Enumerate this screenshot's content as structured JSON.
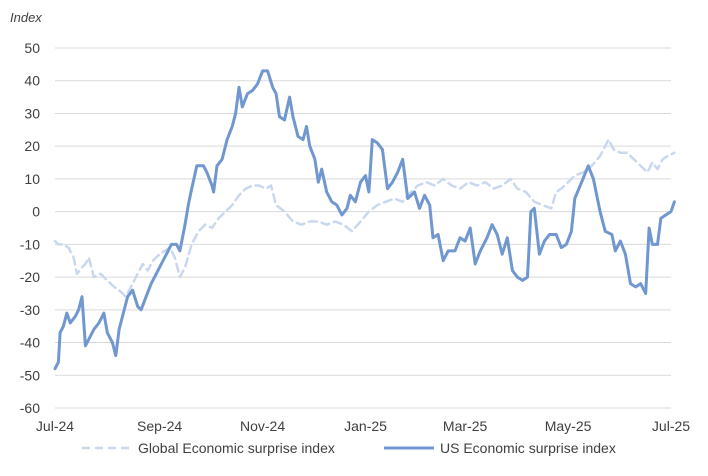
{
  "chart_data": {
    "type": "line",
    "ylabel": "Index",
    "xlabel": "",
    "ylim": [
      -60,
      50
    ],
    "yticks": [
      50,
      40,
      30,
      20,
      10,
      0,
      -10,
      -20,
      -30,
      -40,
      -50,
      -60
    ],
    "x_tick_labels": [
      "Jul-24",
      "Sep-24",
      "Nov-24",
      "Jan-25",
      "Mar-25",
      "May-25",
      "Jul-25"
    ],
    "x_tick_dates": [
      "2024-07-01",
      "2024-09-01",
      "2024-11-01",
      "2025-01-01",
      "2025-03-01",
      "2025-05-01",
      "2025-07-01"
    ],
    "grid": "horizontal",
    "legend": "bottom",
    "series": [
      {
        "name": "Global Economic surprise index",
        "color": "#c9d8ee",
        "style": "dashed",
        "points": [
          [
            "2024-07-01",
            -9
          ],
          [
            "2024-07-03",
            -10
          ],
          [
            "2024-07-06",
            -10
          ],
          [
            "2024-07-09",
            -11
          ],
          [
            "2024-07-12",
            -14
          ],
          [
            "2024-07-14",
            -19
          ],
          [
            "2024-07-17",
            -17
          ],
          [
            "2024-07-19",
            -16
          ],
          [
            "2024-07-21",
            -14
          ],
          [
            "2024-07-24",
            -20
          ],
          [
            "2024-07-28",
            -19
          ],
          [
            "2024-08-01",
            -21
          ],
          [
            "2024-08-05",
            -23
          ],
          [
            "2024-08-08",
            -24
          ],
          [
            "2024-08-12",
            -26
          ],
          [
            "2024-08-15",
            -23
          ],
          [
            "2024-08-19",
            -19
          ],
          [
            "2024-08-22",
            -16
          ],
          [
            "2024-08-25",
            -18
          ],
          [
            "2024-08-28",
            -15
          ],
          [
            "2024-09-01",
            -13
          ],
          [
            "2024-09-04",
            -12
          ],
          [
            "2024-09-07",
            -11
          ],
          [
            "2024-09-10",
            -14
          ],
          [
            "2024-09-13",
            -20
          ],
          [
            "2024-09-16",
            -17
          ],
          [
            "2024-09-20",
            -10
          ],
          [
            "2024-09-24",
            -6
          ],
          [
            "2024-09-28",
            -4
          ],
          [
            "2024-10-02",
            -5
          ],
          [
            "2024-10-06",
            -2
          ],
          [
            "2024-10-10",
            0
          ],
          [
            "2024-10-14",
            2
          ],
          [
            "2024-10-18",
            5
          ],
          [
            "2024-10-22",
            7
          ],
          [
            "2024-10-26",
            8
          ],
          [
            "2024-10-30",
            8
          ],
          [
            "2024-11-03",
            7
          ],
          [
            "2024-11-06",
            8
          ],
          [
            "2024-11-09",
            2
          ],
          [
            "2024-11-14",
            0
          ],
          [
            "2024-11-19",
            -3
          ],
          [
            "2024-11-24",
            -4
          ],
          [
            "2024-11-29",
            -3
          ],
          [
            "2024-12-04",
            -3
          ],
          [
            "2024-12-09",
            -4
          ],
          [
            "2024-12-14",
            -3
          ],
          [
            "2024-12-19",
            -4
          ],
          [
            "2024-12-24",
            -6
          ],
          [
            "2024-12-29",
            -3
          ],
          [
            "2025-01-03",
            0
          ],
          [
            "2025-01-08",
            2
          ],
          [
            "2025-01-13",
            3
          ],
          [
            "2025-01-18",
            4
          ],
          [
            "2025-01-23",
            3
          ],
          [
            "2025-01-28",
            6
          ],
          [
            "2025-02-01",
            8
          ],
          [
            "2025-02-06",
            9
          ],
          [
            "2025-02-11",
            8
          ],
          [
            "2025-02-16",
            10
          ],
          [
            "2025-02-21",
            8
          ],
          [
            "2025-02-26",
            7
          ],
          [
            "2025-03-03",
            9
          ],
          [
            "2025-03-08",
            8
          ],
          [
            "2025-03-13",
            9
          ],
          [
            "2025-03-18",
            7
          ],
          [
            "2025-03-23",
            8
          ],
          [
            "2025-03-28",
            10
          ],
          [
            "2025-04-01",
            7
          ],
          [
            "2025-04-06",
            6
          ],
          [
            "2025-04-11",
            3
          ],
          [
            "2025-04-16",
            2
          ],
          [
            "2025-04-21",
            1
          ],
          [
            "2025-04-24",
            6
          ],
          [
            "2025-04-27",
            7
          ],
          [
            "2025-05-01",
            9
          ],
          [
            "2025-05-05",
            11
          ],
          [
            "2025-05-10",
            12
          ],
          [
            "2025-05-15",
            14
          ],
          [
            "2025-05-20",
            17
          ],
          [
            "2025-05-25",
            22
          ],
          [
            "2025-05-28",
            19
          ],
          [
            "2025-06-01",
            18
          ],
          [
            "2025-06-05",
            18
          ],
          [
            "2025-06-09",
            16
          ],
          [
            "2025-06-13",
            14
          ],
          [
            "2025-06-17",
            12
          ],
          [
            "2025-06-20",
            15
          ],
          [
            "2025-06-23",
            13
          ],
          [
            "2025-06-26",
            16
          ],
          [
            "2025-06-29",
            17
          ],
          [
            "2025-07-03",
            18
          ]
        ]
      },
      {
        "name": "US Economic surprise index",
        "color": "#7097cf",
        "style": "solid",
        "points": [
          [
            "2024-07-01",
            -48
          ],
          [
            "2024-07-03",
            -46
          ],
          [
            "2024-07-04",
            -37
          ],
          [
            "2024-07-06",
            -35
          ],
          [
            "2024-07-08",
            -31
          ],
          [
            "2024-07-10",
            -34
          ],
          [
            "2024-07-13",
            -32
          ],
          [
            "2024-07-15",
            -30
          ],
          [
            "2024-07-17",
            -26
          ],
          [
            "2024-07-19",
            -41
          ],
          [
            "2024-07-21",
            -39
          ],
          [
            "2024-07-24",
            -36
          ],
          [
            "2024-07-27",
            -34
          ],
          [
            "2024-07-30",
            -31
          ],
          [
            "2024-08-01",
            -37
          ],
          [
            "2024-08-04",
            -40
          ],
          [
            "2024-08-06",
            -44
          ],
          [
            "2024-08-08",
            -36
          ],
          [
            "2024-08-10",
            -32
          ],
          [
            "2024-08-13",
            -26
          ],
          [
            "2024-08-16",
            -24
          ],
          [
            "2024-08-19",
            -29
          ],
          [
            "2024-08-21",
            -30
          ],
          [
            "2024-08-24",
            -26
          ],
          [
            "2024-08-27",
            -22
          ],
          [
            "2024-08-30",
            -19
          ],
          [
            "2024-09-02",
            -16
          ],
          [
            "2024-09-05",
            -13
          ],
          [
            "2024-09-08",
            -10
          ],
          [
            "2024-09-11",
            -10
          ],
          [
            "2024-09-13",
            -12
          ],
          [
            "2024-09-16",
            -4
          ],
          [
            "2024-09-18",
            2
          ],
          [
            "2024-09-20",
            7
          ],
          [
            "2024-09-23",
            14
          ],
          [
            "2024-09-27",
            14
          ],
          [
            "2024-09-29",
            12
          ],
          [
            "2024-10-02",
            8
          ],
          [
            "2024-10-03",
            6
          ],
          [
            "2024-10-05",
            14
          ],
          [
            "2024-10-08",
            16
          ],
          [
            "2024-10-11",
            22
          ],
          [
            "2024-10-14",
            26
          ],
          [
            "2024-10-16",
            30
          ],
          [
            "2024-10-18",
            38
          ],
          [
            "2024-10-20",
            32
          ],
          [
            "2024-10-23",
            36
          ],
          [
            "2024-10-26",
            37
          ],
          [
            "2024-10-29",
            39
          ],
          [
            "2024-11-01",
            43
          ],
          [
            "2024-11-04",
            43
          ],
          [
            "2024-11-07",
            38
          ],
          [
            "2024-11-09",
            36
          ],
          [
            "2024-11-11",
            29
          ],
          [
            "2024-11-14",
            28
          ],
          [
            "2024-11-17",
            35
          ],
          [
            "2024-11-19",
            29
          ],
          [
            "2024-11-22",
            23
          ],
          [
            "2024-11-25",
            22
          ],
          [
            "2024-11-27",
            26
          ],
          [
            "2024-11-29",
            20
          ],
          [
            "2024-12-02",
            16
          ],
          [
            "2024-12-04",
            9
          ],
          [
            "2024-12-06",
            13
          ],
          [
            "2024-12-09",
            6
          ],
          [
            "2024-12-12",
            3
          ],
          [
            "2024-12-15",
            2
          ],
          [
            "2024-12-18",
            -1
          ],
          [
            "2024-12-21",
            1
          ],
          [
            "2024-12-23",
            5
          ],
          [
            "2024-12-26",
            3
          ],
          [
            "2024-12-29",
            9
          ],
          [
            "2025-01-01",
            11
          ],
          [
            "2025-01-03",
            6
          ],
          [
            "2025-01-05",
            22
          ],
          [
            "2025-01-08",
            21
          ],
          [
            "2025-01-11",
            19
          ],
          [
            "2025-01-14",
            7
          ],
          [
            "2025-01-17",
            9
          ],
          [
            "2025-01-20",
            12
          ],
          [
            "2025-01-23",
            16
          ],
          [
            "2025-01-26",
            4
          ],
          [
            "2025-01-30",
            6
          ],
          [
            "2025-02-02",
            1
          ],
          [
            "2025-02-05",
            5
          ],
          [
            "2025-02-08",
            2
          ],
          [
            "2025-02-10",
            -8
          ],
          [
            "2025-02-13",
            -7
          ],
          [
            "2025-02-16",
            -15
          ],
          [
            "2025-02-19",
            -12
          ],
          [
            "2025-02-23",
            -12
          ],
          [
            "2025-02-26",
            -8
          ],
          [
            "2025-03-01",
            -9
          ],
          [
            "2025-03-04",
            -5
          ],
          [
            "2025-03-07",
            -16
          ],
          [
            "2025-03-10",
            -12
          ],
          [
            "2025-03-14",
            -8
          ],
          [
            "2025-03-17",
            -4
          ],
          [
            "2025-03-20",
            -7
          ],
          [
            "2025-03-23",
            -13
          ],
          [
            "2025-03-26",
            -8
          ],
          [
            "2025-03-29",
            -18
          ],
          [
            "2025-04-01",
            -20
          ],
          [
            "2025-04-04",
            -21
          ],
          [
            "2025-04-07",
            -20
          ],
          [
            "2025-04-09",
            0
          ],
          [
            "2025-04-11",
            1
          ],
          [
            "2025-04-14",
            -13
          ],
          [
            "2025-04-17",
            -9
          ],
          [
            "2025-04-20",
            -7
          ],
          [
            "2025-04-24",
            -7
          ],
          [
            "2025-04-27",
            -11
          ],
          [
            "2025-04-30",
            -10
          ],
          [
            "2025-05-03",
            -6
          ],
          [
            "2025-05-05",
            4
          ],
          [
            "2025-05-09",
            9
          ],
          [
            "2025-05-13",
            14
          ],
          [
            "2025-05-16",
            10
          ],
          [
            "2025-05-20",
            0
          ],
          [
            "2025-05-23",
            -6
          ],
          [
            "2025-05-27",
            -7
          ],
          [
            "2025-05-29",
            -12
          ],
          [
            "2025-06-01",
            -9
          ],
          [
            "2025-06-04",
            -13
          ],
          [
            "2025-06-07",
            -22
          ],
          [
            "2025-06-10",
            -23
          ],
          [
            "2025-06-13",
            -22
          ],
          [
            "2025-06-16",
            -25
          ],
          [
            "2025-06-18",
            -5
          ],
          [
            "2025-06-20",
            -10
          ],
          [
            "2025-06-23",
            -10
          ],
          [
            "2025-06-25",
            -2
          ],
          [
            "2025-06-28",
            -1
          ],
          [
            "2025-07-01",
            0
          ],
          [
            "2025-07-03",
            3
          ]
        ]
      }
    ]
  }
}
